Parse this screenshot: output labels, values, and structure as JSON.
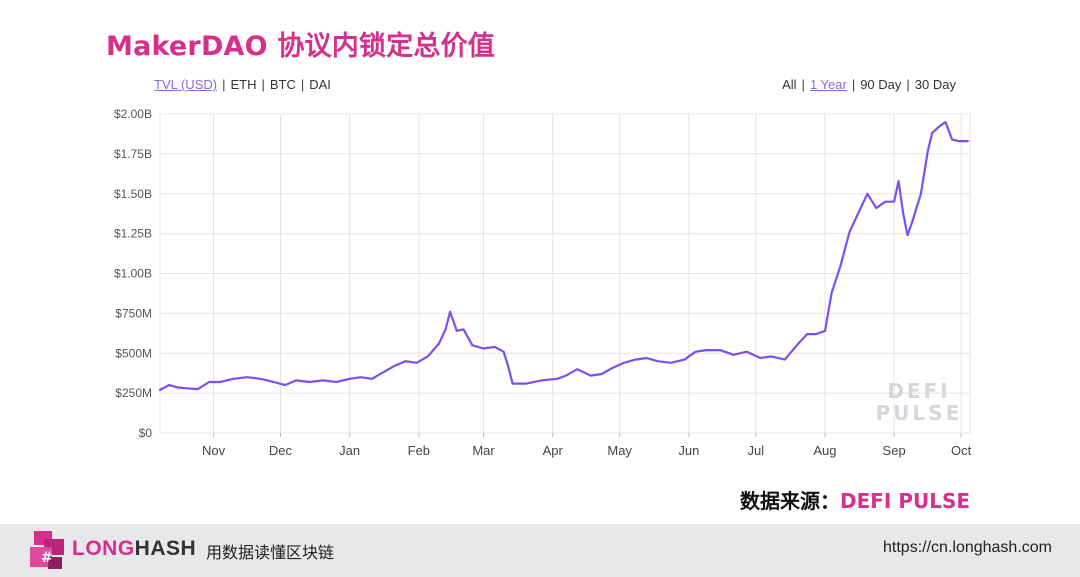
{
  "page": {
    "title": "MakerDAO 协议内锁定总价值",
    "source_prefix": "数据来源：",
    "source_name": "DEFI PULSE"
  },
  "toggles": {
    "units": [
      {
        "label": "TVL (USD)",
        "active": true
      },
      {
        "label": "ETH",
        "active": false
      },
      {
        "label": "BTC",
        "active": false
      },
      {
        "label": "DAI",
        "active": false
      }
    ],
    "ranges": [
      {
        "label": "All",
        "active": false
      },
      {
        "label": "1 Year",
        "active": true
      },
      {
        "label": "90 Day",
        "active": false
      },
      {
        "label": "30 Day",
        "active": false
      }
    ]
  },
  "footer": {
    "logo_part1": "LONG",
    "logo_part2": "HASH",
    "tagline": "用数据读懂区块链",
    "website": "https://cn.longhash.com"
  },
  "colors": {
    "accent": "#d62f8c",
    "line": "#7b4ff0",
    "grid": "#e4e4e4"
  },
  "chart_data": {
    "type": "line",
    "title": "",
    "watermark": [
      "DEFI",
      "PULSE"
    ],
    "x_tick_labels": [
      "Nov",
      "Dec",
      "Jan",
      "Feb",
      "Mar",
      "Apr",
      "May",
      "Jun",
      "Jul",
      "Aug",
      "Sep",
      "Oct"
    ],
    "x_tick_dates": [
      "2019-11-01",
      "2019-12-01",
      "2020-01-01",
      "2020-02-01",
      "2020-03-01",
      "2020-04-01",
      "2020-05-01",
      "2020-06-01",
      "2020-07-01",
      "2020-08-01",
      "2020-09-01",
      "2020-10-01"
    ],
    "xlim": [
      "2019-10-08",
      "2020-10-05"
    ],
    "y_tick_labels": [
      "$0",
      "$250M",
      "$500M",
      "$750M",
      "$1.00B",
      "$1.25B",
      "$1.50B",
      "$1.75B",
      "$2.00B"
    ],
    "y_tick_values": [
      0,
      250,
      500,
      750,
      1000,
      1250,
      1500,
      1750,
      2000
    ],
    "ylim": [
      0,
      2000
    ],
    "y_unit": "USD millions",
    "grid": true,
    "series": [
      {
        "x": [
          "2019-10-08",
          "2019-10-12",
          "2019-10-16",
          "2019-10-20",
          "2019-10-25",
          "2019-10-30",
          "2019-11-04",
          "2019-11-10",
          "2019-11-16",
          "2019-11-22",
          "2019-11-28",
          "2019-12-03",
          "2019-12-08",
          "2019-12-14",
          "2019-12-20",
          "2019-12-26",
          "2020-01-01",
          "2020-01-06",
          "2020-01-11",
          "2020-01-16",
          "2020-01-21",
          "2020-01-26",
          "2020-01-31",
          "2020-02-05",
          "2020-02-10",
          "2020-02-13",
          "2020-02-15",
          "2020-02-18",
          "2020-02-21",
          "2020-02-25",
          "2020-03-01",
          "2020-03-06",
          "2020-03-10",
          "2020-03-12",
          "2020-03-14",
          "2020-03-20",
          "2020-03-27",
          "2020-04-03",
          "2020-04-07",
          "2020-04-12",
          "2020-04-18",
          "2020-04-23",
          "2020-04-28",
          "2020-05-03",
          "2020-05-08",
          "2020-05-13",
          "2020-05-18",
          "2020-05-24",
          "2020-05-30",
          "2020-06-04",
          "2020-06-09",
          "2020-06-15",
          "2020-06-21",
          "2020-06-27",
          "2020-07-03",
          "2020-07-08",
          "2020-07-14",
          "2020-07-20",
          "2020-07-24",
          "2020-07-28",
          "2020-08-01",
          "2020-08-04",
          "2020-08-08",
          "2020-08-12",
          "2020-08-16",
          "2020-08-20",
          "2020-08-24",
          "2020-08-28",
          "2020-09-01",
          "2020-09-03",
          "2020-09-05",
          "2020-09-07",
          "2020-09-09",
          "2020-09-13",
          "2020-09-16",
          "2020-09-18",
          "2020-09-21",
          "2020-09-24",
          "2020-09-27",
          "2020-09-30",
          "2020-10-02",
          "2020-10-04"
        ],
        "y": [
          270,
          300,
          285,
          280,
          275,
          320,
          320,
          340,
          350,
          340,
          320,
          300,
          330,
          320,
          330,
          320,
          340,
          350,
          340,
          380,
          420,
          450,
          440,
          480,
          560,
          650,
          760,
          640,
          650,
          550,
          530,
          540,
          510,
          420,
          310,
          310,
          330,
          340,
          360,
          400,
          360,
          370,
          410,
          440,
          460,
          470,
          450,
          440,
          460,
          510,
          520,
          520,
          490,
          510,
          470,
          480,
          460,
          560,
          620,
          620,
          640,
          880,
          1050,
          1260,
          1380,
          1500,
          1410,
          1450,
          1450,
          1580,
          1380,
          1240,
          1320,
          1500,
          1760,
          1880,
          1920,
          1950,
          1840,
          1830,
          1830,
          1830
        ]
      }
    ]
  }
}
